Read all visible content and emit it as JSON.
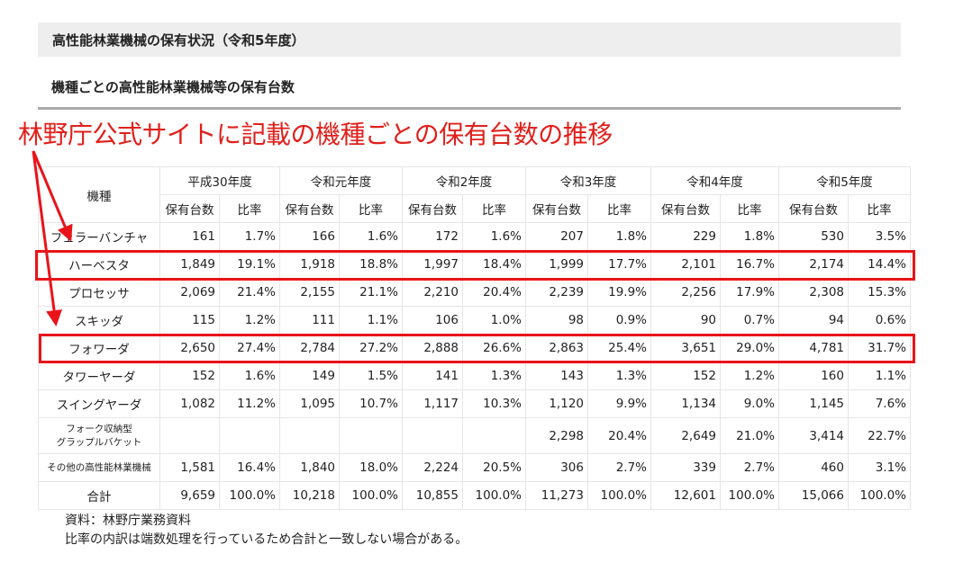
{
  "page_title": "高性能林業機械の保有状況（令和5年度）",
  "section_title": "機種ごとの高性能林業機械等の保有台数",
  "annotation": "林野庁公式サイトに記載の機種ごとの保有台数の推移",
  "annotation_color": "#e8141a",
  "table": {
    "corner": "機種",
    "years": [
      "平成30年度",
      "令和元年度",
      "令和2年度",
      "令和3年度",
      "令和4年度",
      "令和5年度"
    ],
    "sub_headers": [
      "保有台数",
      "比率"
    ],
    "rows": [
      {
        "label": "フェラーバンチャ",
        "values": [
          "161",
          "1.7%",
          "166",
          "1.6%",
          "172",
          "1.6%",
          "207",
          "1.8%",
          "229",
          "1.8%",
          "530",
          "3.5%"
        ]
      },
      {
        "label": "ハーベスタ",
        "highlight": true,
        "values": [
          "1,849",
          "19.1%",
          "1,918",
          "18.8%",
          "1,997",
          "18.4%",
          "1,999",
          "17.7%",
          "2,101",
          "16.7%",
          "2,174",
          "14.4%"
        ]
      },
      {
        "label": "プロセッサ",
        "values": [
          "2,069",
          "21.4%",
          "2,155",
          "21.1%",
          "2,210",
          "20.4%",
          "2,239",
          "19.9%",
          "2,256",
          "17.9%",
          "2,308",
          "15.3%"
        ]
      },
      {
        "label": "スキッダ",
        "values": [
          "115",
          "1.2%",
          "111",
          "1.1%",
          "106",
          "1.0%",
          "98",
          "0.9%",
          "90",
          "0.7%",
          "94",
          "0.6%"
        ]
      },
      {
        "label": "フォワーダ",
        "highlight": true,
        "values": [
          "2,650",
          "27.4%",
          "2,784",
          "27.2%",
          "2,888",
          "26.6%",
          "2,863",
          "25.4%",
          "3,651",
          "29.0%",
          "4,781",
          "31.7%"
        ]
      },
      {
        "label": "タワーヤーダ",
        "values": [
          "152",
          "1.6%",
          "149",
          "1.5%",
          "141",
          "1.3%",
          "143",
          "1.3%",
          "152",
          "1.2%",
          "160",
          "1.1%"
        ]
      },
      {
        "label": "スイングヤーダ",
        "values": [
          "1,082",
          "11.2%",
          "1,095",
          "10.7%",
          "1,117",
          "10.3%",
          "1,120",
          "9.9%",
          "1,134",
          "9.0%",
          "1,145",
          "7.6%"
        ]
      },
      {
        "label": "フォーク収納型\nグラップルバケット",
        "small": true,
        "values": [
          "",
          "",
          "",
          "",
          "",
          "",
          "2,298",
          "20.4%",
          "2,649",
          "21.0%",
          "3,414",
          "22.7%"
        ]
      },
      {
        "label": "その他の高性能林業機械",
        "small": true,
        "values": [
          "1,581",
          "16.4%",
          "1,840",
          "18.0%",
          "2,224",
          "20.5%",
          "306",
          "2.7%",
          "339",
          "2.7%",
          "460",
          "3.1%"
        ]
      },
      {
        "label": "合計",
        "values": [
          "9,659",
          "100.0%",
          "10,218",
          "100.0%",
          "10,855",
          "100.0%",
          "11,273",
          "100.0%",
          "12,601",
          "100.0%",
          "15,066",
          "100.0%"
        ]
      }
    ]
  },
  "notes": [
    "資料：林野庁業務資料",
    "比率の内訳は端数処理を行っているため合計と一致しない場合がある。"
  ]
}
